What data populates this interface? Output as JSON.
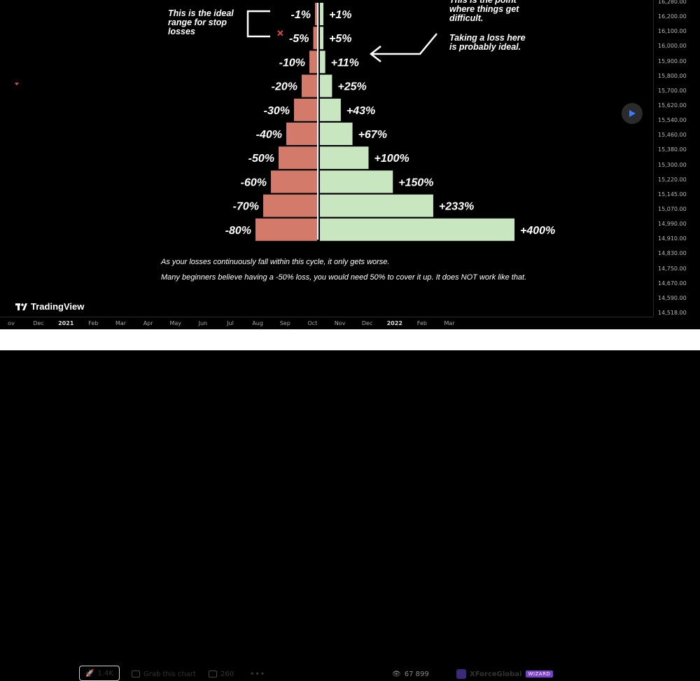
{
  "chart_data": {
    "type": "bar",
    "categories": [
      "-1%",
      "-5%",
      "-10%",
      "-20%",
      "-30%",
      "-40%",
      "-50%",
      "-60%",
      "-70%",
      "-80%"
    ],
    "series": [
      {
        "values": [
          1,
          5,
          10,
          20,
          30,
          40,
          50,
          60,
          70,
          80
        ]
      },
      {
        "values": [
          1,
          5,
          11,
          25,
          43,
          67,
          100,
          150,
          233,
          400
        ]
      }
    ],
    "loss_labels": [
      "-1%",
      "-5%",
      "-10%",
      "-20%",
      "-30%",
      "-40%",
      "-50%",
      "-60%",
      "-70%",
      "-80%"
    ],
    "gain_labels": [
      "+1%",
      "+5%",
      "+11%",
      "+25%",
      "+43%",
      "+67%",
      "+100%",
      "+150%",
      "+233%",
      "+400%"
    ],
    "colors": {
      "loss": "#d47a6a",
      "gain": "#c8e6c0"
    }
  },
  "annotations": {
    "ideal_range": "This is the ideal range for stop losses",
    "difficult_point": "This is the point where things get difficult.",
    "taking_loss": "Taking a loss here is probably ideal.",
    "caption_1": "As your losses continuously fall within this cycle, it only gets worse.",
    "caption_2": "Many beginners believe having a -50% loss, you would need 50% to cover it up. It does NOT work like that."
  },
  "price_axis": [
    "16,280.00",
    "16,200.00",
    "16,100.00",
    "16,000.00",
    "15,900.00",
    "15,800.00",
    "15,700.00",
    "15,620.00",
    "15,540.00",
    "15,460.00",
    "15,380.00",
    "15,300.00",
    "15,220.00",
    "15,145.00",
    "15,070.00",
    "14,990.00",
    "14,910.00",
    "14,830.00",
    "14,750.00",
    "14,670.00",
    "14,590.00",
    "14,518.00"
  ],
  "time_axis": [
    {
      "label": "ov",
      "bold": false
    },
    {
      "label": "Dec",
      "bold": false
    },
    {
      "label": "2021",
      "bold": true
    },
    {
      "label": "Feb",
      "bold": false
    },
    {
      "label": "Mar",
      "bold": false
    },
    {
      "label": "Apr",
      "bold": false
    },
    {
      "label": "May",
      "bold": false
    },
    {
      "label": "Jun",
      "bold": false
    },
    {
      "label": "Jul",
      "bold": false
    },
    {
      "label": "Aug",
      "bold": false
    },
    {
      "label": "Sep",
      "bold": false
    },
    {
      "label": "Oct",
      "bold": false
    },
    {
      "label": "Nov",
      "bold": false
    },
    {
      "label": "Dec",
      "bold": false
    },
    {
      "label": "2022",
      "bold": true
    },
    {
      "label": "Feb",
      "bold": false
    },
    {
      "label": "Mar",
      "bold": false
    }
  ],
  "branding": {
    "logo": "TradingView"
  },
  "toolbar": {
    "boost_count": "1.4K",
    "grab_label": "Grab this chart",
    "comments_count": "260",
    "views_count": "67 899",
    "author": "XForceGlobal",
    "author_badge": "WIZARD"
  },
  "icons": [
    "rocket-icon",
    "grab-chart-icon",
    "comment-icon",
    "more-icon",
    "eye-icon",
    "author-avatar-icon",
    "play-icon",
    "close-x-icon"
  ]
}
